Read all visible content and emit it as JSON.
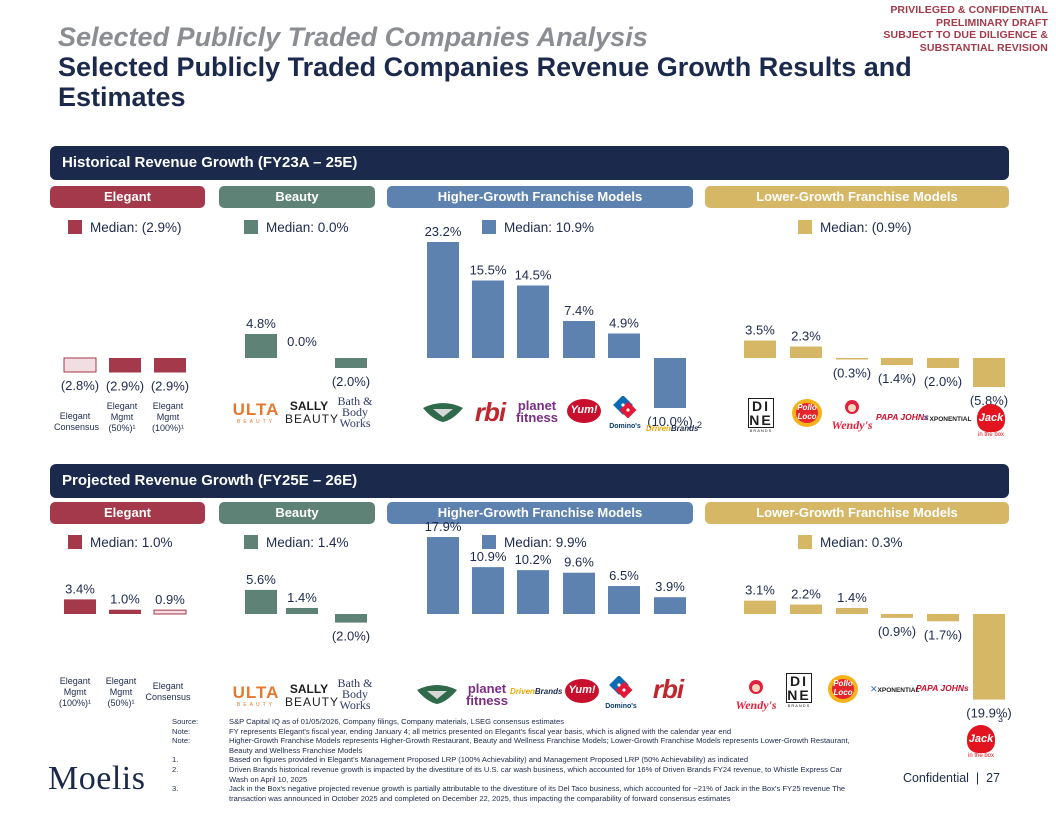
{
  "header": {
    "confidential_lines": [
      "PRIVILEGED & CONFIDENTIAL",
      "PRELIMINARY DRAFT",
      "SUBJECT TO DUE DILIGENCE &",
      "SUBSTANTIAL REVISION"
    ],
    "title": "Selected Publicly Traded Companies Analysis",
    "subtitle": "Selected Publicly Traded Companies Revenue Growth Results and Estimates"
  },
  "segments": {
    "elegant": "Elegant",
    "beauty": "Beauty",
    "higher": "Higher-Growth Franchise Models",
    "lower": "Lower-Growth Franchise Models"
  },
  "colors": {
    "elegant": "#a3394a",
    "elegant_light": "#f2dde3",
    "beauty": "#5f8276",
    "higher": "#5e82b0",
    "lower": "#d5b766",
    "navy": "#1b2a4c"
  },
  "sections": {
    "historical": {
      "title": "Historical Revenue Growth (FY23A – 25E)",
      "medians": {
        "elegant": "Median: (2.9%)",
        "beauty": "Median: 0.0%",
        "higher": "Median: 10.9%",
        "lower": "Median: (0.9%)"
      }
    },
    "projected": {
      "title": "Projected Revenue Growth (FY25E – 26E)",
      "medians": {
        "elegant": "Median: 1.0%",
        "beauty": "Median: 1.4%",
        "higher": "Median: 9.9%",
        "lower": "Median: 0.3%"
      }
    }
  },
  "chart_data": [
    {
      "type": "bar",
      "title": "Historical Revenue Growth (FY23A – 25E)",
      "unit": "%",
      "categories": [
        "Elegant Consensus",
        "Elegant Mgmt (50%)",
        "Elegant Mgmt (100%)",
        "ULTA Beauty",
        "Sally Beauty",
        "Bath & Body Works",
        "Wingstop",
        "RBI",
        "Planet Fitness",
        "Yum!",
        "Domino's",
        "Driven Brands",
        "Dine Brands",
        "Pollo Loco",
        "Wendy's",
        "Papa John's",
        "Xponential",
        "Jack in the Box"
      ],
      "values": [
        -2.8,
        -2.9,
        -2.9,
        4.8,
        0.0,
        -2.0,
        23.2,
        15.5,
        14.5,
        7.4,
        4.9,
        -10.0,
        3.5,
        2.3,
        -0.3,
        -1.4,
        -2.0,
        -5.8
      ],
      "labels": [
        "(2.8%)",
        "(2.9%)",
        "(2.9%)",
        "4.8%",
        "0.0%",
        "(2.0%)",
        "23.2%",
        "15.5%",
        "14.5%",
        "7.4%",
        "4.9%",
        "(10.0%)",
        "3.5%",
        "2.3%",
        "(0.3%)",
        "(1.4%)",
        "(2.0%)",
        "(5.8%)"
      ],
      "groups": [
        "elegant_light",
        "elegant",
        "elegant",
        "beauty",
        "beauty",
        "beauty",
        "higher",
        "higher",
        "higher",
        "higher",
        "higher",
        "higher",
        "lower",
        "lower",
        "lower",
        "lower",
        "lower",
        "lower"
      ],
      "category_text": [
        "Elegant\nConsensus",
        "Elegant\nMgmt\n(50%)¹",
        "Elegant\nMgmt\n(100%)¹"
      ],
      "footnote_marks": {
        "Driven Brands": "2"
      }
    },
    {
      "type": "bar",
      "title": "Projected Revenue Growth (FY25E – 26E)",
      "unit": "%",
      "categories": [
        "Elegant Mgmt (100%)",
        "Elegant Mgmt (50%)",
        "Elegant Consensus",
        "ULTA Beauty",
        "Sally Beauty",
        "Bath & Body Works",
        "Wingstop",
        "Planet Fitness",
        "Driven Brands",
        "Yum!",
        "Domino's",
        "RBI",
        "Wendy's",
        "Dine Brands",
        "Pollo Loco",
        "Xponential",
        "Papa John's",
        "Jack in the Box"
      ],
      "values": [
        3.4,
        1.0,
        0.9,
        5.6,
        1.4,
        -2.0,
        17.9,
        10.9,
        10.2,
        9.6,
        6.5,
        3.9,
        3.1,
        2.2,
        1.4,
        -0.9,
        -1.7,
        -19.9
      ],
      "labels": [
        "3.4%",
        "1.0%",
        "0.9%",
        "5.6%",
        "1.4%",
        "(2.0%)",
        "17.9%",
        "10.9%",
        "10.2%",
        "9.6%",
        "6.5%",
        "3.9%",
        "3.1%",
        "2.2%",
        "1.4%",
        "(0.9%)",
        "(1.7%)",
        "(19.9%)"
      ],
      "groups": [
        "elegant",
        "elegant",
        "elegant_light",
        "beauty",
        "beauty",
        "beauty",
        "higher",
        "higher",
        "higher",
        "higher",
        "higher",
        "higher",
        "lower",
        "lower",
        "lower",
        "lower",
        "lower",
        "lower"
      ],
      "category_text": [
        "Elegant\nMgmt\n(100%)¹",
        "Elegant\nMgmt\n(50%)¹",
        "Elegant\nConsensus"
      ],
      "footnote_marks": {
        "Jack in the Box": "3"
      }
    }
  ],
  "logos": {
    "ulta": "ULTA",
    "ulta_sub": "BEAUTY",
    "sally": "SALLY",
    "sally_sub": "BEAUTY",
    "bbw": "Bath & Body Works",
    "wingstop": "WINGSTOP",
    "rbi": "rbi",
    "planet": "planet",
    "planet_sub": "fitness",
    "yum": "Yum!",
    "dominos": "Domino's",
    "driven1": "Driven",
    "driven2": "Brands",
    "dine1": "DI",
    "dine2": "NE",
    "dine_sub": "BRANDS",
    "pollo": "Pollo Loco",
    "wendys": "Wendy's",
    "papajohns": "PAPA JOHNs",
    "xponential": "XPONENTIAL",
    "jack": "Jack",
    "jack_sub": "in the box"
  },
  "footnotes": [
    {
      "key": "Source:",
      "text": "S&P Capital IQ as of 01/05/2026, Company filings, Company materials, LSEG consensus estimates"
    },
    {
      "key": "Note:",
      "text": "FY represents Elegant's fiscal year, ending January 4; all metrics presented on Elegant's fiscal year basis, which is aligned with the calendar year end"
    },
    {
      "key": "Note:",
      "text": "Higher-Growth Franchise Models represents Higher-Growth Restaurant, Beauty and Wellness Franchise Models; Lower-Growth Franchise Models represents Lower-Growth Restaurant, Beauty and Wellness Franchise Models"
    },
    {
      "key": "1.",
      "text": "Based on figures provided in Elegant's Management Proposed LRP (100% Achievability) and Management Proposed LRP (50% Achievability) as indicated"
    },
    {
      "key": "2.",
      "text": "Driven Brands historical revenue growth is impacted by the divestiture of its U.S. car wash business, which accounted for 16% of Driven Brands FY24 revenue, to Whistle Express Car Wash on April 10, 2025"
    },
    {
      "key": "3.",
      "text": "Jack in the Box's negative projected revenue growth is partially attributable to the divestiture of its Del Taco business, which accounted for ~21% of Jack in the Box's FY25 revenue The transaction was announced in October 2025 and completed on December 22, 2025, thus impacting the comparability of forward consensus estimates"
    }
  ],
  "footer": {
    "brand": "Moelis",
    "confidential": "Confidential",
    "page": "27"
  }
}
